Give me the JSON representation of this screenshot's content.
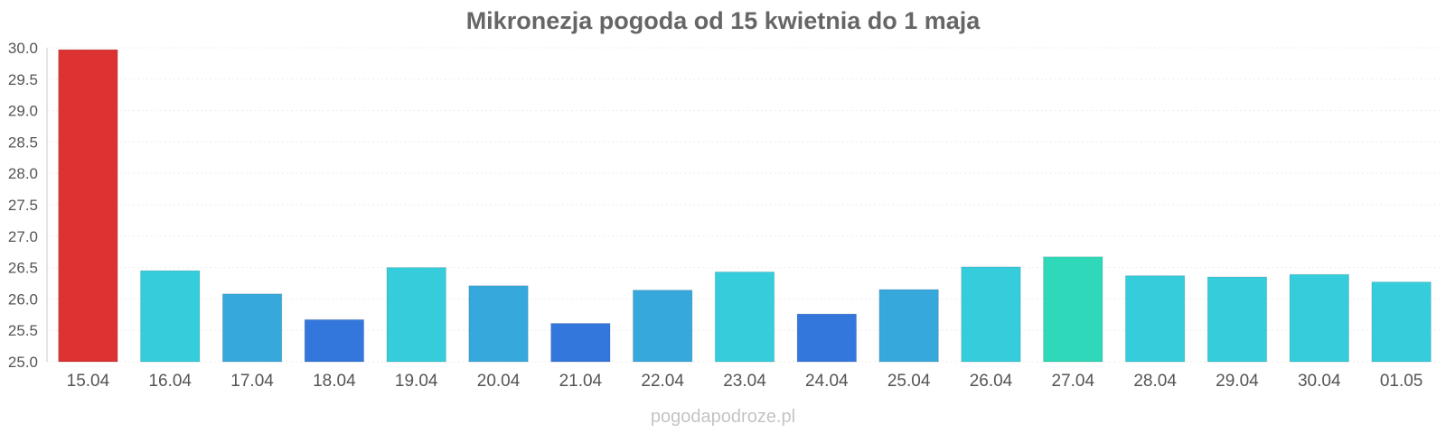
{
  "chart_data": {
    "type": "bar",
    "title": "Mikronezja pogoda od 15 kwietnia do 1 maja",
    "xlabel": "",
    "ylabel": "",
    "categories": [
      "15.04",
      "16.04",
      "17.04",
      "18.04",
      "19.04",
      "20.04",
      "21.04",
      "22.04",
      "23.04",
      "24.04",
      "25.04",
      "26.04",
      "27.04",
      "28.04",
      "29.04",
      "30.04",
      "01.05"
    ],
    "values": [
      29.97,
      26.45,
      26.08,
      25.67,
      26.5,
      26.21,
      25.61,
      26.14,
      26.43,
      25.76,
      26.15,
      26.51,
      26.67,
      26.37,
      26.35,
      26.39,
      26.27
    ],
    "ylim": [
      25.0,
      30.0
    ],
    "yticks": [
      "25.0",
      "25.5",
      "26.0",
      "26.5",
      "27.0",
      "27.5",
      "28.0",
      "28.5",
      "29.0",
      "29.5",
      "30.0"
    ],
    "grid": true,
    "colors": {
      "hot": "#dc3232",
      "warm_teal": "#2fd8b8",
      "cyan": "#35cddc",
      "mid_blue": "#37a8dc",
      "blue": "#3477dc"
    },
    "bar_colors": [
      "#dc3232",
      "#35cddc",
      "#37a8dc",
      "#3477dc",
      "#35cddc",
      "#37a8dc",
      "#3477dc",
      "#37a8dc",
      "#35cddc",
      "#3477dc",
      "#37a8dc",
      "#35cddc",
      "#2fd8b8",
      "#35cddc",
      "#35cddc",
      "#35cddc",
      "#35cddc"
    ]
  },
  "watermark": "pogodapodroze.pl"
}
